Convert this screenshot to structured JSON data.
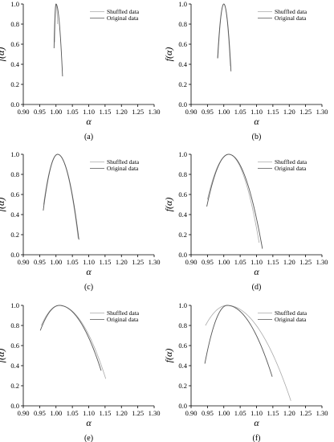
{
  "panel_label_format": "({label})",
  "chart_data": [
    {
      "type": "line",
      "panel_label": "a",
      "xlabel": "α",
      "ylabel": "f(α)",
      "xlim": [
        0.9,
        1.3
      ],
      "ylim": [
        0.0,
        1.0
      ],
      "xticks": [
        "0.90",
        "0.95",
        "1.00",
        "1.05",
        "1.10",
        "1.15",
        "1.20",
        "1.25",
        "1.30"
      ],
      "yticks": [
        "0.0",
        "0.2",
        "0.4",
        "0.6",
        "0.8",
        "1.0"
      ],
      "legend": "top-right",
      "series": [
        {
          "name": "Shuffled data",
          "color": "#aaaaaa",
          "alpha_min": 0.996,
          "alpha_peak": 1.0,
          "alpha_max": 1.005,
          "f_left": 0.62,
          "f_right": 0.8
        },
        {
          "name": "Original data",
          "color": "#555555",
          "alpha_min": 0.994,
          "alpha_peak": 1.0,
          "alpha_max": 1.02,
          "f_left": 0.56,
          "f_right": 0.28
        }
      ]
    },
    {
      "type": "line",
      "panel_label": "b",
      "xlabel": "α",
      "ylabel": "f(α)",
      "xlim": [
        0.9,
        1.3
      ],
      "ylim": [
        0.0,
        1.0
      ],
      "xticks": [
        "0.90",
        "0.95",
        "1.00",
        "1.05",
        "1.10",
        "1.15",
        "1.20",
        "1.25",
        "1.30"
      ],
      "yticks": [
        "0.0",
        "0.2",
        "0.4",
        "0.6",
        "0.8",
        "1.0"
      ],
      "legend": "top-right",
      "series": [
        {
          "name": "Shuffled data",
          "color": "#aaaaaa",
          "alpha_min": 0.982,
          "alpha_peak": 1.0,
          "alpha_max": 1.02,
          "f_left": 0.46,
          "f_right": 0.38
        },
        {
          "name": "Original data",
          "color": "#555555",
          "alpha_min": 0.981,
          "alpha_peak": 1.0,
          "alpha_max": 1.022,
          "f_left": 0.46,
          "f_right": 0.33
        }
      ]
    },
    {
      "type": "line",
      "panel_label": "c",
      "xlabel": "α",
      "ylabel": "f(α)",
      "xlim": [
        0.9,
        1.3
      ],
      "ylim": [
        0.0,
        1.0
      ],
      "xticks": [
        "0.90",
        "0.95",
        "1.00",
        "1.05",
        "1.10",
        "1.15",
        "1.20",
        "1.25",
        "1.30"
      ],
      "yticks": [
        "0.0",
        "0.2",
        "0.4",
        "0.6",
        "0.8",
        "1.0"
      ],
      "legend": "top-right",
      "series": [
        {
          "name": "Shuffled data",
          "color": "#aaaaaa",
          "alpha_min": 0.962,
          "alpha_peak": 1.005,
          "alpha_max": 1.068,
          "f_left": 0.5,
          "f_right": 0.16
        },
        {
          "name": "Original data",
          "color": "#555555",
          "alpha_min": 0.961,
          "alpha_peak": 1.005,
          "alpha_max": 1.07,
          "f_left": 0.44,
          "f_right": 0.15
        }
      ]
    },
    {
      "type": "line",
      "panel_label": "d",
      "xlabel": "α",
      "ylabel": "f(α)",
      "xlim": [
        0.9,
        1.3
      ],
      "ylim": [
        0.0,
        1.0
      ],
      "xticks": [
        "0.90",
        "0.95",
        "1.00",
        "1.05",
        "1.10",
        "1.15",
        "1.20",
        "1.25",
        "1.30"
      ],
      "yticks": [
        "0.0",
        "0.2",
        "0.4",
        "0.6",
        "0.8",
        "1.0"
      ],
      "legend": "top-right",
      "series": [
        {
          "name": "Shuffled data",
          "color": "#aaaaaa",
          "alpha_min": 0.95,
          "alpha_peak": 1.015,
          "alpha_max": 1.108,
          "f_left": 0.55,
          "f_right": 0.12
        },
        {
          "name": "Original data",
          "color": "#555555",
          "alpha_min": 0.948,
          "alpha_peak": 1.015,
          "alpha_max": 1.118,
          "f_left": 0.48,
          "f_right": 0.06
        }
      ]
    },
    {
      "type": "line",
      "panel_label": "e",
      "xlabel": "α",
      "ylabel": "f(α)",
      "xlim": [
        0.9,
        1.3
      ],
      "ylim": [
        0.0,
        1.0
      ],
      "xticks": [
        "0.90",
        "0.95",
        "1.00",
        "1.05",
        "1.10",
        "1.15",
        "1.20",
        "1.25",
        "1.30"
      ],
      "yticks": [
        "0.0",
        "0.2",
        "0.4",
        "0.6",
        "0.8",
        "1.0"
      ],
      "legend": "top-right",
      "series": [
        {
          "name": "Shuffled data",
          "color": "#aaaaaa",
          "alpha_min": 0.955,
          "alpha_peak": 1.01,
          "alpha_max": 1.152,
          "f_left": 0.8,
          "f_right": 0.27
        },
        {
          "name": "Original data",
          "color": "#555555",
          "alpha_min": 0.952,
          "alpha_peak": 1.01,
          "alpha_max": 1.138,
          "f_left": 0.75,
          "f_right": 0.35
        }
      ]
    },
    {
      "type": "line",
      "panel_label": "f",
      "xlabel": "α",
      "ylabel": "f(α)",
      "xlim": [
        0.9,
        1.3
      ],
      "ylim": [
        0.0,
        1.0
      ],
      "xticks": [
        "0.90",
        "0.95",
        "1.00",
        "1.05",
        "1.10",
        "1.15",
        "1.20",
        "1.25",
        "1.30"
      ],
      "yticks": [
        "0.0",
        "0.2",
        "0.4",
        "0.6",
        "0.8",
        "1.0"
      ],
      "legend": "top-right",
      "series": [
        {
          "name": "Shuffled data",
          "color": "#aaaaaa",
          "alpha_min": 0.944,
          "alpha_peak": 1.01,
          "alpha_max": 1.205,
          "f_left": 0.8,
          "f_right": 0.05
        },
        {
          "name": "Original data",
          "color": "#555555",
          "alpha_min": 0.942,
          "alpha_peak": 1.01,
          "alpha_max": 1.148,
          "f_left": 0.42,
          "f_right": 0.29
        }
      ]
    }
  ]
}
